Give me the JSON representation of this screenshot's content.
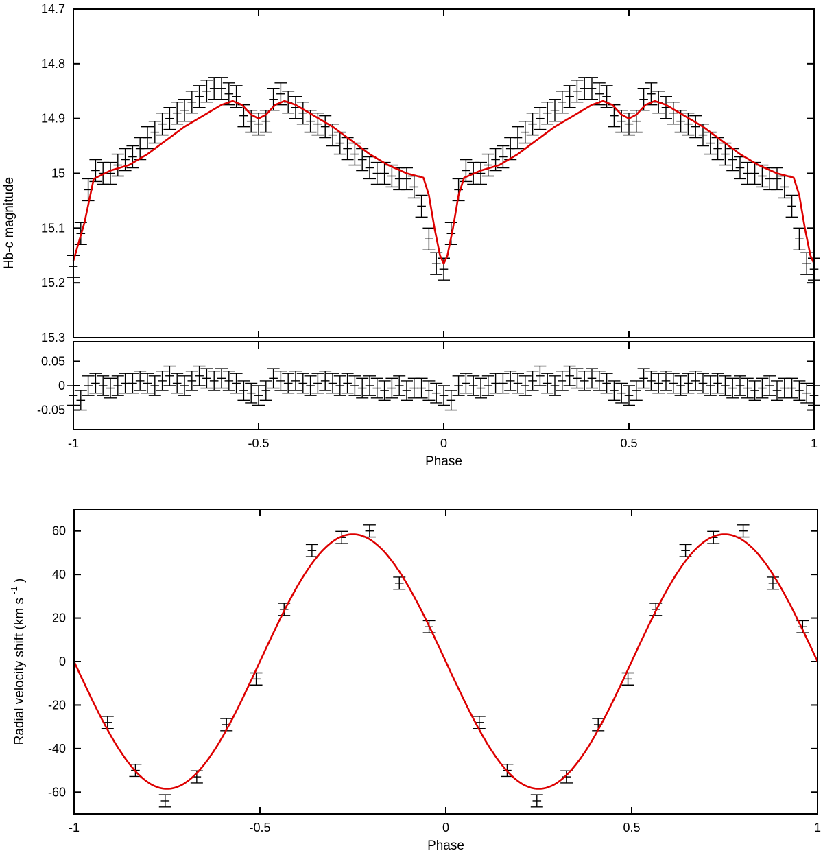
{
  "chart_data": [
    {
      "id": "light_curve",
      "type": "scatter",
      "title": "",
      "xlabel": "",
      "ylabel": "Hb-c magnitude",
      "xlim": [
        -1,
        1
      ],
      "ylim": [
        15.3,
        14.7
      ],
      "y_inverted": true,
      "yticks": [
        "14.7",
        "14.8",
        "14.9",
        "15",
        "15.1",
        "15.2",
        "15.3"
      ],
      "xticks": [
        "-1",
        "-0.5",
        "0",
        "0.5",
        "1"
      ],
      "colors": {
        "data": "#000000",
        "model": "#dd0000"
      },
      "series": [
        {
          "kind": "error_bars",
          "x": [
            -1.0,
            -0.98,
            -0.96,
            -0.94,
            -0.92,
            -0.9,
            -0.88,
            -0.86,
            -0.84,
            -0.82,
            -0.8,
            -0.78,
            -0.76,
            -0.74,
            -0.72,
            -0.7,
            -0.68,
            -0.66,
            -0.64,
            -0.62,
            -0.6,
            -0.58,
            -0.56,
            -0.54,
            -0.52,
            -0.5,
            -0.48,
            -0.46,
            -0.44,
            -0.42,
            -0.4,
            -0.38,
            -0.36,
            -0.34,
            -0.32,
            -0.3,
            -0.28,
            -0.26,
            -0.24,
            -0.22,
            -0.2,
            -0.18,
            -0.16,
            -0.14,
            -0.12,
            -0.1,
            -0.08,
            -0.06,
            -0.04,
            -0.02,
            0.0,
            0.02,
            0.04,
            0.06,
            0.08,
            0.1,
            0.12,
            0.14,
            0.16,
            0.18,
            0.2,
            0.22,
            0.24,
            0.26,
            0.28,
            0.3,
            0.32,
            0.34,
            0.36,
            0.38,
            0.4,
            0.42,
            0.44,
            0.46,
            0.48,
            0.5,
            0.52,
            0.54,
            0.56,
            0.58,
            0.6,
            0.62,
            0.64,
            0.66,
            0.68,
            0.7,
            0.72,
            0.74,
            0.76,
            0.78,
            0.8,
            0.82,
            0.84,
            0.86,
            0.88,
            0.9,
            0.92,
            0.94,
            0.96,
            0.98,
            1.0
          ],
          "y": [
            15.17,
            15.11,
            15.03,
            14.995,
            15.0,
            15.0,
            14.985,
            14.975,
            14.97,
            14.955,
            14.935,
            14.925,
            14.91,
            14.9,
            14.89,
            14.885,
            14.87,
            14.86,
            14.85,
            14.845,
            14.845,
            14.855,
            14.86,
            14.895,
            14.905,
            14.91,
            14.905,
            14.865,
            14.855,
            14.87,
            14.88,
            14.89,
            14.905,
            14.91,
            14.915,
            14.93,
            14.945,
            14.955,
            14.965,
            14.975,
            14.99,
            15.0,
            15.0,
            15.005,
            15.01,
            15.01,
            15.025,
            15.06,
            15.12,
            15.165,
            15.175,
            15.11,
            15.03,
            14.995,
            15.0,
            15.0,
            14.985,
            14.975,
            14.97,
            14.955,
            14.935,
            14.925,
            14.91,
            14.9,
            14.89,
            14.885,
            14.87,
            14.86,
            14.85,
            14.845,
            14.845,
            14.855,
            14.86,
            14.895,
            14.905,
            14.91,
            14.905,
            14.865,
            14.855,
            14.87,
            14.88,
            14.89,
            14.905,
            14.91,
            14.915,
            14.93,
            14.945,
            14.955,
            14.965,
            14.975,
            14.99,
            15.0,
            15.0,
            15.005,
            15.01,
            15.01,
            15.025,
            15.06,
            15.12,
            15.165,
            15.175
          ],
          "err": 0.02
        },
        {
          "kind": "model_line",
          "x": [
            -1.0,
            -0.97,
            -0.945,
            -0.9,
            -0.85,
            -0.8,
            -0.75,
            -0.7,
            -0.65,
            -0.6,
            -0.57,
            -0.545,
            -0.52,
            -0.5,
            -0.48,
            -0.455,
            -0.43,
            -0.4,
            -0.35,
            -0.3,
            -0.25,
            -0.2,
            -0.15,
            -0.1,
            -0.055,
            -0.04,
            -0.025,
            -0.01,
            0.0,
            0.01,
            0.025,
            0.04,
            0.055,
            0.1,
            0.15,
            0.2,
            0.25,
            0.3,
            0.35,
            0.4,
            0.43,
            0.455,
            0.48,
            0.5,
            0.52,
            0.545,
            0.57,
            0.6,
            0.65,
            0.7,
            0.75,
            0.8,
            0.85,
            0.9,
            0.945,
            0.96,
            0.975,
            0.99,
            1.0
          ],
          "y": [
            15.16,
            15.09,
            15.01,
            14.995,
            14.985,
            14.965,
            14.94,
            14.915,
            14.895,
            14.875,
            14.868,
            14.875,
            14.893,
            14.9,
            14.893,
            14.875,
            14.868,
            14.875,
            14.895,
            14.915,
            14.94,
            14.965,
            14.985,
            15.0,
            15.008,
            15.04,
            15.1,
            15.15,
            15.165,
            15.15,
            15.1,
            15.04,
            15.008,
            14.995,
            14.985,
            14.965,
            14.94,
            14.915,
            14.895,
            14.875,
            14.868,
            14.875,
            14.893,
            14.9,
            14.893,
            14.875,
            14.868,
            14.875,
            14.895,
            14.915,
            14.94,
            14.965,
            14.985,
            15.0,
            15.008,
            15.04,
            15.1,
            15.15,
            15.165
          ]
        }
      ]
    },
    {
      "id": "residuals",
      "type": "scatter",
      "title": "",
      "xlabel": "Phase",
      "ylabel": "",
      "xlim": [
        -1,
        1
      ],
      "ylim": [
        -0.09,
        0.09
      ],
      "yticks": [
        "0.05",
        "0",
        "-0.05"
      ],
      "xticks": [
        "-1",
        "-0.5",
        "0",
        "0.5",
        "1"
      ],
      "colors": {
        "data": "#000000"
      },
      "series": [
        {
          "kind": "error_bars",
          "x": [
            -1.0,
            -0.98,
            -0.96,
            -0.94,
            -0.92,
            -0.9,
            -0.88,
            -0.86,
            -0.84,
            -0.82,
            -0.8,
            -0.78,
            -0.76,
            -0.74,
            -0.72,
            -0.7,
            -0.68,
            -0.66,
            -0.64,
            -0.62,
            -0.6,
            -0.58,
            -0.56,
            -0.54,
            -0.52,
            -0.5,
            -0.48,
            -0.46,
            -0.44,
            -0.42,
            -0.4,
            -0.38,
            -0.36,
            -0.34,
            -0.32,
            -0.3,
            -0.28,
            -0.26,
            -0.24,
            -0.22,
            -0.2,
            -0.18,
            -0.16,
            -0.14,
            -0.12,
            -0.1,
            -0.08,
            -0.06,
            -0.04,
            -0.02,
            0.0,
            0.02,
            0.04,
            0.06,
            0.08,
            0.1,
            0.12,
            0.14,
            0.16,
            0.18,
            0.2,
            0.22,
            0.24,
            0.26,
            0.28,
            0.3,
            0.32,
            0.34,
            0.36,
            0.38,
            0.4,
            0.42,
            0.44,
            0.46,
            0.48,
            0.5,
            0.52,
            0.54,
            0.56,
            0.58,
            0.6,
            0.62,
            0.64,
            0.66,
            0.68,
            0.7,
            0.72,
            0.74,
            0.76,
            0.78,
            0.8,
            0.82,
            0.84,
            0.86,
            0.88,
            0.9,
            0.92,
            0.94,
            0.96,
            0.98,
            1.0
          ],
          "y": [
            -0.02,
            -0.03,
            0.0,
            0.005,
            0.0,
            -0.005,
            0.0,
            0.005,
            0.005,
            0.01,
            0.005,
            0.0,
            0.01,
            0.02,
            0.005,
            0.0,
            0.01,
            0.02,
            0.015,
            0.01,
            0.015,
            0.01,
            0.005,
            -0.01,
            -0.015,
            -0.02,
            -0.01,
            0.015,
            0.01,
            0.005,
            0.01,
            0.005,
            0.0,
            0.005,
            0.01,
            0.005,
            0.0,
            0.005,
            0.0,
            -0.005,
            0.0,
            -0.005,
            -0.01,
            -0.005,
            0.0,
            -0.01,
            -0.005,
            -0.005,
            -0.01,
            -0.015,
            -0.02,
            -0.03,
            0.0,
            0.005,
            0.0,
            -0.005,
            0.0,
            0.005,
            0.005,
            0.01,
            0.005,
            0.0,
            0.01,
            0.02,
            0.005,
            0.0,
            0.01,
            0.02,
            0.015,
            0.01,
            0.015,
            0.01,
            0.005,
            -0.01,
            -0.015,
            -0.02,
            -0.01,
            0.015,
            0.01,
            0.005,
            0.01,
            0.005,
            0.0,
            0.005,
            0.01,
            0.005,
            0.0,
            0.005,
            0.0,
            -0.005,
            0.0,
            -0.005,
            -0.01,
            -0.005,
            0.0,
            -0.01,
            -0.005,
            -0.005,
            -0.01,
            -0.015,
            -0.02
          ],
          "err": 0.02
        }
      ]
    },
    {
      "id": "radial_velocity",
      "type": "scatter",
      "title": "",
      "xlabel": "Phase",
      "ylabel": "Radial velocity shift (km s",
      "ylabel_sup": "-1",
      "ylabel_close": ")",
      "xlim": [
        -1,
        1
      ],
      "ylim": [
        -70,
        70
      ],
      "yticks": [
        "60",
        "40",
        "20",
        "0",
        "-20",
        "-40",
        "-60"
      ],
      "xticks": [
        "-1",
        "-0.5",
        "0",
        "0.5",
        "1"
      ],
      "colors": {
        "data": "#000000",
        "model": "#dd0000"
      },
      "series": [
        {
          "kind": "error_bars",
          "x": [
            -0.91,
            -0.835,
            -0.755,
            -0.67,
            -0.59,
            -0.51,
            -0.435,
            -0.36,
            -0.28,
            -0.205,
            -0.125,
            -0.045,
            0.09,
            0.165,
            0.245,
            0.325,
            0.41,
            0.49,
            0.565,
            0.645,
            0.72,
            0.8,
            0.88,
            0.96
          ],
          "y": [
            -28,
            -50,
            -64,
            -53,
            -29,
            -8,
            24,
            51,
            57,
            60,
            36,
            16,
            -28,
            -50,
            -64,
            -53,
            -29,
            -8,
            24,
            51,
            57,
            60,
            36,
            16
          ],
          "err": 2.8
        },
        {
          "kind": "model_line",
          "amplitude": 58.5,
          "function": "-A*sin(2*pi*phase)"
        }
      ]
    }
  ]
}
